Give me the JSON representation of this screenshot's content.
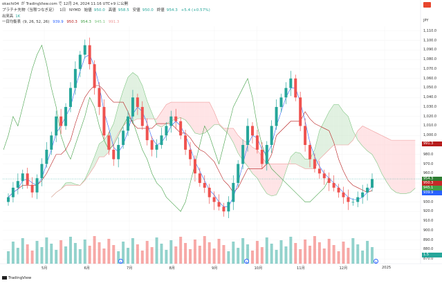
{
  "header": {
    "publisher": "okachi04",
    "publish_text": "が TradingView.com で 12月 24, 2024 11:16 UTC+9 に公開",
    "symbol": "プラチナ先物（当限つなぎ足）",
    "timeframe": "1日",
    "exchange": "NYMD",
    "ohlc": {
      "open_label": "始値",
      "open": "950.0",
      "high_label": "高値",
      "high": "958.5",
      "low_label": "安値",
      "low": "950.0",
      "close_label": "終値",
      "close": "954.3",
      "change": "+5.4 (+0.57%)"
    },
    "volume_label": "出来高",
    "volume_value": "1K",
    "indicator_name": "一目均衡表",
    "indicator_params": "(9, 26, 52, 26)",
    "indicator_values": [
      "939.9",
      "950.3",
      "954.3",
      "945.1",
      "991.3"
    ]
  },
  "axis": {
    "currency": "JPY",
    "price_ticks": [
      "1,110.0",
      "1,100.0",
      "1,090.0",
      "1,080.0",
      "1,070.0",
      "1,060.0",
      "1,050.0",
      "1,040.0",
      "1,030.0",
      "1,020.0",
      "1,010.0",
      "1,000.0",
      "990.0",
      "980.0",
      "970.0",
      "960.0",
      "950.0",
      "940.0",
      "930.0",
      "920.0",
      "910.0",
      "900.0",
      "890.0",
      "880.0",
      "870.0"
    ],
    "month_labels": [
      "5月",
      "6月",
      "7月",
      "8月",
      "9月",
      "10月",
      "11月",
      "12月",
      "2025"
    ],
    "volume_badge": "1.5"
  },
  "price_badges": [
    {
      "value": "991.3",
      "color": "#b71c1c"
    },
    {
      "value": "954.3",
      "color": "#26a69a"
    },
    {
      "value": "954.3",
      "color": "#2e7d32"
    },
    {
      "value": "950.3",
      "color": "#c62828"
    },
    {
      "value": "945.1",
      "color": "#43a047"
    },
    {
      "value": "939.9",
      "color": "#2962ff"
    }
  ],
  "footer": {
    "logo_text": "TradingView"
  },
  "colors": {
    "up": "#26a69a",
    "down": "#ef5350",
    "tenkan": "#2962ff",
    "kijun": "#b71c1c",
    "chikou": "#43a047",
    "cloud_bull": "#c8e6c9",
    "cloud_bear": "#ffcdd2"
  },
  "chart_data": {
    "type": "candlestick",
    "price_range": [
      865,
      1115
    ],
    "months": [
      "5月",
      "6月",
      "7月",
      "8月",
      "9月",
      "10月",
      "11月",
      "12月"
    ],
    "closes": [
      935,
      945,
      952,
      960,
      948,
      940,
      955,
      970,
      985,
      1000,
      1020,
      1010,
      1030,
      1050,
      1070,
      1085,
      1095,
      1075,
      1050,
      1030,
      1000,
      985,
      975,
      990,
      1005,
      1020,
      1040,
      1030,
      1010,
      995,
      985,
      990,
      1000,
      1010,
      1020,
      1015,
      1000,
      985,
      975,
      960,
      950,
      945,
      935,
      930,
      925,
      920,
      930,
      950,
      970,
      990,
      1010,
      1000,
      985,
      970,
      990,
      1010,
      1030,
      1040,
      1050,
      1060,
      1040,
      1010,
      990,
      975,
      965,
      960,
      955,
      950,
      945,
      940,
      935,
      930,
      930,
      935,
      940,
      945,
      954
    ],
    "last_close": 954.3,
    "last_open": 950.0,
    "last_high": 958.5,
    "last_low": 950.0
  }
}
